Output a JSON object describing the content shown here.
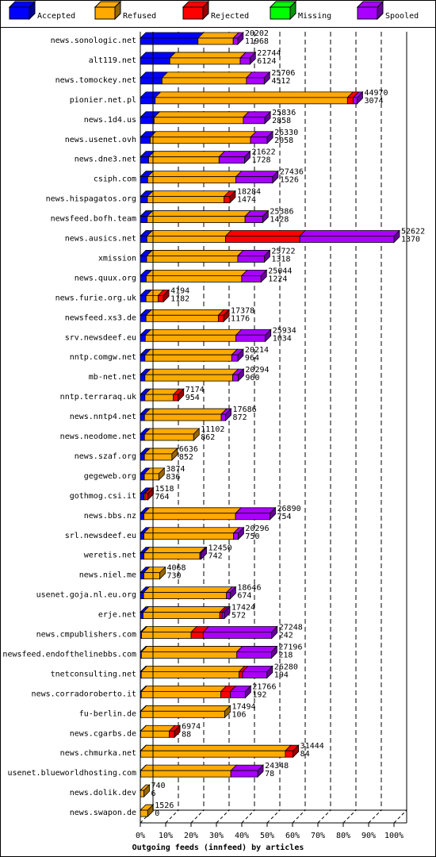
{
  "chart_data": {
    "type": "bar",
    "orientation": "horizontal",
    "stacked": true,
    "render": "3d",
    "xlabel": "Outgoing feeds (innfeed) by articles",
    "xlim": [
      0,
      100
    ],
    "x_ticks": [
      "0%",
      "10%",
      "20%",
      "30%",
      "40%",
      "50%",
      "60%",
      "70%",
      "80%",
      "90%",
      "100%"
    ],
    "legend_position": "top",
    "legend": [
      {
        "name": "Accepted",
        "color": "#0000ff"
      },
      {
        "name": "Refused",
        "color": "#ffaa00"
      },
      {
        "name": "Rejected",
        "color": "#ff0000"
      },
      {
        "name": "Missing",
        "color": "#00ff00"
      },
      {
        "name": "Spooled",
        "color": "#aa00ff"
      }
    ],
    "categories": [
      "news.sonologic.net",
      "alt119.net",
      "news.tomockey.net",
      "pionier.net.pl",
      "news.1d4.us",
      "news.usenet.ovh",
      "news.dne3.net",
      "csiph.com",
      "news.hispagatos.org",
      "newsfeed.bofh.team",
      "news.ausics.net",
      "xmission",
      "news.quux.org",
      "news.furie.org.uk",
      "newsfeed.xs3.de",
      "srv.newsdeef.eu",
      "nntp.comgw.net",
      "mb-net.net",
      "nntp.terraraq.uk",
      "news.nntp4.net",
      "news.neodome.net",
      "news.szaf.org",
      "gegeweb.org",
      "gothmog.csi.it",
      "news.bbs.nz",
      "srl.newsdeef.eu",
      "weretis.net",
      "news.niel.me",
      "usenet.goja.nl.eu.org",
      "erje.net",
      "news.cmpublishers.com",
      "newsfeed.endofthelinebbs.com",
      "tnetconsulting.net",
      "news.corradoroberto.it",
      "fu-berlin.de",
      "news.cgarbs.de",
      "news.chmurka.net",
      "usenet.blueworldhosting.com",
      "news.dolik.dev",
      "news.swapon.de"
    ],
    "offered": [
      20202,
      22744,
      25706,
      44970,
      25836,
      26330,
      21622,
      27436,
      18284,
      25386,
      52622,
      25722,
      25044,
      4194,
      17378,
      25934,
      20214,
      20294,
      7174,
      17686,
      11102,
      6636,
      3874,
      1518,
      26890,
      20296,
      12450,
      4068,
      18646,
      17424,
      27248,
      27196,
      26280,
      21766,
      17494,
      6974,
      31444,
      24348,
      740,
      1526
    ],
    "accepted": [
      11968,
      6124,
      4512,
      3074,
      2858,
      2058,
      1728,
      1526,
      1474,
      1428,
      1370,
      1318,
      1224,
      1182,
      1176,
      1034,
      964,
      960,
      954,
      872,
      862,
      852,
      836,
      764,
      754,
      750,
      742,
      730,
      674,
      572,
      242,
      218,
      194,
      192,
      106,
      88,
      84,
      78,
      6,
      0
    ],
    "refused": [
      7300,
      14600,
      17500,
      39900,
      18500,
      20800,
      14600,
      18300,
      15900,
      20300,
      16300,
      18900,
      19800,
      2500,
      15000,
      18800,
      18000,
      18200,
      5900,
      15900,
      10200,
      5700,
      3000,
      200,
      19000,
      18600,
      11600,
      3300,
      17200,
      15900,
      10300,
      19800,
      20300,
      16500,
      17400,
      5900,
      30000,
      18700,
      734,
      1526
    ],
    "rejected": [
      0,
      0,
      0,
      1200,
      0,
      0,
      0,
      0,
      1200,
      0,
      15400,
      0,
      0,
      1100,
      1100,
      0,
      0,
      0,
      1000,
      0,
      0,
      0,
      0,
      600,
      0,
      0,
      0,
      0,
      0,
      500,
      2500,
      0,
      700,
      2000,
      0,
      1100,
      1600,
      0,
      0,
      0
    ],
    "missing": [
      0,
      0,
      0,
      0,
      0,
      0,
      0,
      0,
      0,
      0,
      0,
      0,
      0,
      0,
      0,
      0,
      0,
      0,
      0,
      0,
      0,
      0,
      0,
      0,
      0,
      0,
      0,
      0,
      0,
      0,
      0,
      0,
      0,
      0,
      0,
      0,
      0,
      0,
      0,
      0
    ],
    "spooled": [
      934,
      2020,
      3694,
      796,
      4478,
      3472,
      5294,
      7610,
      0,
      3658,
      19552,
      5504,
      4020,
      0,
      0,
      6100,
      1250,
      1134,
      0,
      914,
      0,
      0,
      0,
      0,
      7136,
      946,
      108,
      0,
      772,
      452,
      14206,
      7178,
      5086,
      3074,
      0,
      0,
      0,
      5570,
      0,
      0
    ]
  }
}
